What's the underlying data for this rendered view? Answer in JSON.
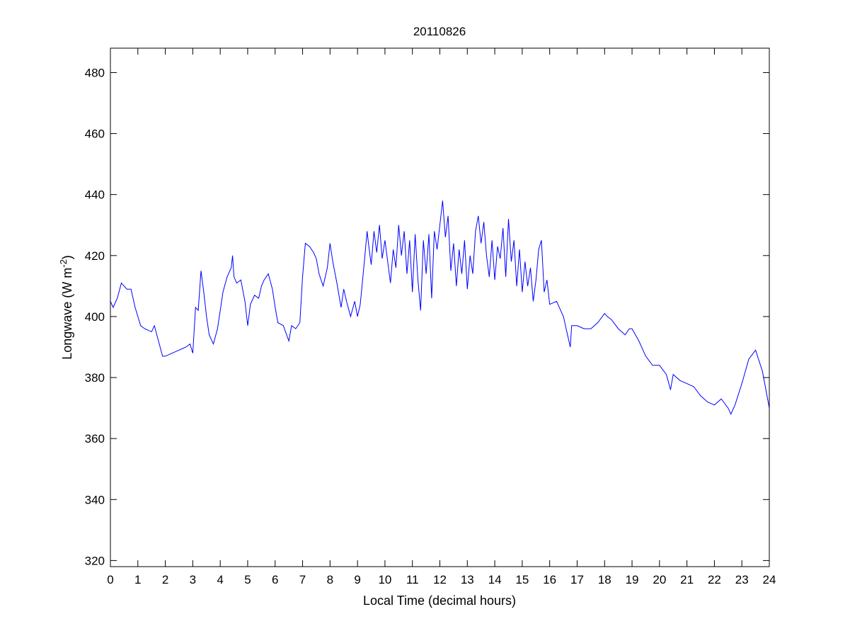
{
  "chart_data": {
    "type": "line",
    "title": "20110826",
    "xlabel": "Local Time (decimal hours)",
    "ylabel": {
      "base": "Longwave (W m",
      "sup": "-2",
      "close": ")"
    },
    "xlim": [
      0,
      24
    ],
    "ylim": [
      318,
      488
    ],
    "xticks": [
      0,
      1,
      2,
      3,
      4,
      5,
      6,
      7,
      8,
      9,
      10,
      11,
      12,
      13,
      14,
      15,
      16,
      17,
      18,
      19,
      20,
      21,
      22,
      23,
      24
    ],
    "yticks": [
      320,
      340,
      360,
      380,
      400,
      420,
      440,
      460,
      480
    ],
    "grid": false,
    "line_color": "#0000ff",
    "series": [
      {
        "name": "Longwave",
        "x": [
          0,
          0.1,
          0.25,
          0.4,
          0.6,
          0.75,
          0.9,
          1.0,
          1.1,
          1.25,
          1.5,
          1.6,
          1.75,
          1.9,
          2.0,
          2.25,
          2.5,
          2.75,
          2.9,
          3.0,
          3.1,
          3.2,
          3.3,
          3.4,
          3.5,
          3.6,
          3.75,
          3.9,
          4.0,
          4.1,
          4.25,
          4.4,
          4.45,
          4.5,
          4.6,
          4.75,
          4.9,
          5.0,
          5.1,
          5.25,
          5.4,
          5.5,
          5.6,
          5.75,
          5.9,
          6.0,
          6.1,
          6.3,
          6.5,
          6.6,
          6.75,
          6.9,
          7.0,
          7.1,
          7.25,
          7.4,
          7.5,
          7.6,
          7.75,
          7.9,
          8.0,
          8.1,
          8.25,
          8.4,
          8.5,
          8.6,
          8.75,
          8.9,
          9.0,
          9.1,
          9.25,
          9.35,
          9.4,
          9.5,
          9.6,
          9.7,
          9.8,
          9.9,
          10.0,
          10.1,
          10.2,
          10.3,
          10.4,
          10.5,
          10.6,
          10.7,
          10.8,
          10.9,
          11.0,
          11.1,
          11.2,
          11.3,
          11.4,
          11.5,
          11.6,
          11.7,
          11.8,
          11.9,
          12.0,
          12.1,
          12.2,
          12.3,
          12.4,
          12.5,
          12.6,
          12.7,
          12.8,
          12.9,
          13.0,
          13.1,
          13.2,
          13.3,
          13.4,
          13.5,
          13.6,
          13.7,
          13.8,
          13.9,
          14.0,
          14.1,
          14.2,
          14.3,
          14.4,
          14.5,
          14.6,
          14.7,
          14.8,
          14.9,
          15.0,
          15.1,
          15.2,
          15.3,
          15.4,
          15.5,
          15.6,
          15.7,
          15.8,
          15.9,
          16.0,
          16.25,
          16.5,
          16.6,
          16.75,
          16.8,
          17.0,
          17.25,
          17.5,
          17.75,
          18.0,
          18.1,
          18.25,
          18.5,
          18.75,
          18.9,
          19.0,
          19.25,
          19.5,
          19.75,
          20.0,
          20.25,
          20.4,
          20.5,
          20.75,
          21.0,
          21.25,
          21.5,
          21.75,
          22.0,
          22.25,
          22.5,
          22.6,
          22.75,
          23.0,
          23.25,
          23.5,
          23.75,
          24.0
        ],
        "y": [
          405,
          403,
          406,
          411,
          409,
          409,
          403,
          400,
          397,
          396,
          395,
          397,
          392,
          387,
          387,
          388,
          389,
          390,
          391,
          388,
          403,
          402,
          415,
          408,
          400,
          394,
          391,
          396,
          402,
          408,
          413,
          416,
          420,
          413,
          411,
          412,
          405,
          397,
          404,
          407,
          406,
          410,
          412,
          414,
          409,
          403,
          398,
          397,
          392,
          397,
          396,
          398,
          413,
          424,
          423,
          421,
          419,
          414,
          410,
          416,
          424,
          418,
          411,
          403,
          409,
          405,
          400,
          405,
          400,
          404,
          418,
          428,
          424,
          417,
          428,
          421,
          430,
          419,
          425,
          418,
          411,
          422,
          416,
          430,
          420,
          428,
          414,
          425,
          408,
          427,
          412,
          402,
          425,
          414,
          427,
          406,
          428,
          422,
          430,
          438,
          426,
          433,
          415,
          424,
          410,
          422,
          414,
          425,
          409,
          420,
          414,
          428,
          433,
          424,
          431,
          420,
          413,
          425,
          412,
          423,
          419,
          429,
          413,
          432,
          418,
          425,
          410,
          422,
          408,
          418,
          410,
          416,
          405,
          412,
          422,
          425,
          408,
          412,
          404,
          405,
          400,
          396,
          390,
          397,
          397,
          396,
          396,
          398,
          401,
          400,
          399,
          396,
          394,
          396,
          396,
          392,
          387,
          384,
          384,
          381,
          376,
          381,
          379,
          378,
          377,
          374,
          372,
          371,
          373,
          370,
          368,
          371,
          378,
          386,
          389,
          382,
          370
        ]
      }
    ]
  }
}
